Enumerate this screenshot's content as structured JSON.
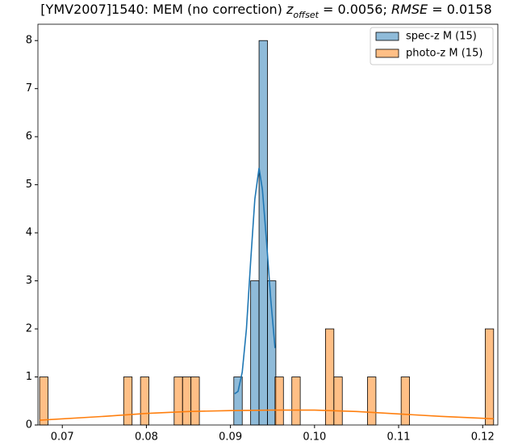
{
  "chart_data": {
    "type": "histogram",
    "title": [
      "[YMV2007]1540: MEM (no correction) ",
      "z",
      "offset",
      " = 0.0056; ",
      "RMSE",
      " = 0.0158"
    ],
    "xlim": [
      0.0671,
      0.1218
    ],
    "ylim": [
      0,
      8.34
    ],
    "xticks": [
      0.07,
      0.08,
      0.09,
      {
        "value": 0.1,
        "label": "0.10"
      },
      0.11,
      0.12
    ],
    "yticks": [
      0,
      1,
      2,
      3,
      4,
      5,
      6,
      7,
      8
    ],
    "legend": "upper right",
    "series": [
      {
        "name": "spec-z M (15)",
        "color": "#1f77b4",
        "bins": [
          0.0904,
          0.0914,
          0.0924,
          0.0934,
          0.0944,
          0.0954
        ],
        "values": [
          1,
          0,
          3,
          8,
          3
        ],
        "kde_x": [
          0.0905,
          0.0909,
          0.0914,
          0.0919,
          0.0924,
          0.0929,
          0.0934,
          0.0938,
          0.0943,
          0.0948,
          0.0953
        ],
        "kde_values": [
          0.65,
          0.7,
          1.1,
          2.0,
          3.4,
          4.7,
          5.35,
          4.9,
          3.8,
          2.6,
          1.6
        ]
      },
      {
        "name": "photo-z M (15)",
        "color": "#ff7f0e",
        "bins": [
          0.0673,
          0.0683,
          0.0693,
          0.0703,
          0.0713,
          0.0723,
          0.0733,
          0.0743,
          0.0753,
          0.0763,
          0.0773,
          0.0783,
          0.0793,
          0.0803,
          0.0813,
          0.0823,
          0.0833,
          0.0843,
          0.0853,
          0.0863,
          0.0873,
          0.0883,
          0.0893,
          0.0903,
          0.0913,
          0.0923,
          0.0933,
          0.0943,
          0.0953,
          0.0963,
          0.0973,
          0.0983,
          0.0993,
          0.1003,
          0.1013,
          0.1023,
          0.1033,
          0.1043,
          0.1053,
          0.1063,
          0.1073,
          0.1083,
          0.1093,
          0.1103,
          0.1113,
          0.1123,
          0.1133,
          0.1143,
          0.1153,
          0.1163,
          0.1173,
          0.1183,
          0.1193,
          0.1203,
          0.1213
        ],
        "values": [
          1,
          0,
          0,
          0,
          0,
          0,
          0,
          0,
          0,
          0,
          1,
          0,
          1,
          0,
          0,
          0,
          1,
          1,
          1,
          0,
          0,
          0,
          0,
          0,
          0,
          0,
          0,
          0,
          1,
          0,
          1,
          0,
          0,
          0,
          2,
          1,
          0,
          0,
          0,
          1,
          0,
          0,
          0,
          1,
          0,
          0,
          0,
          0,
          0,
          0,
          0,
          0,
          0,
          2
        ],
        "kde_x": [
          0.0673,
          0.075,
          0.08,
          0.085,
          0.09,
          0.095,
          0.1,
          0.105,
          0.11,
          0.115,
          0.1213
        ],
        "kde_values": [
          0.1,
          0.18,
          0.24,
          0.28,
          0.3,
          0.31,
          0.31,
          0.28,
          0.23,
          0.18,
          0.13
        ]
      }
    ]
  }
}
